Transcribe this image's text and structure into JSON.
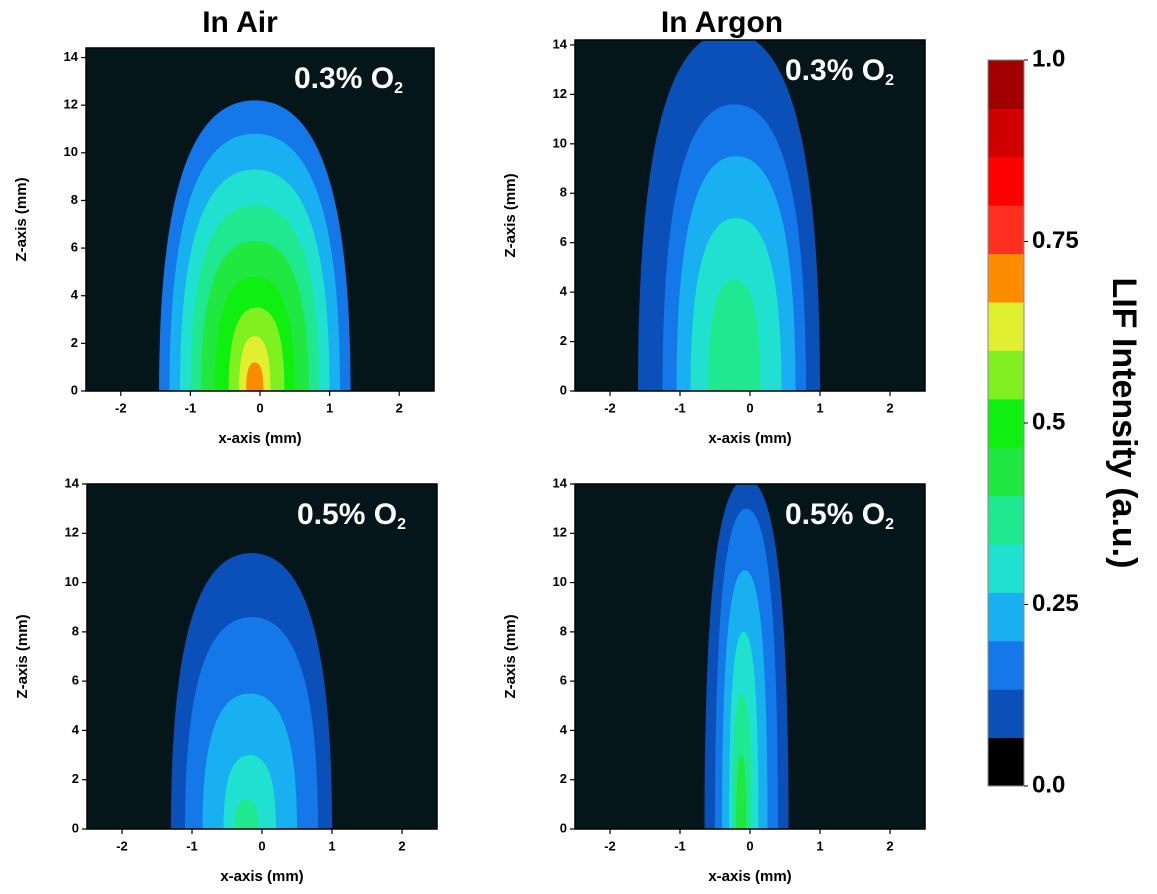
{
  "column_titles": [
    "In Air",
    "In Argon"
  ],
  "chart_data": [
    {
      "type": "contour",
      "annotation": {
        "text": "0.3% O",
        "subscript": "2"
      },
      "xlabel": "x-axis (mm)",
      "ylabel": "Z-axis (mm)",
      "xlim": [
        -2.5,
        2.5
      ],
      "xticks": [
        -2,
        -1,
        0,
        1,
        2
      ],
      "ylim": [
        0,
        14.4
      ],
      "yticks": [
        0,
        2,
        4,
        6,
        8,
        10,
        12,
        14
      ],
      "background": "#04161a",
      "levels": [
        0.14,
        0.2,
        0.27,
        0.34,
        0.4,
        0.47,
        0.54,
        0.6,
        0.67
      ],
      "left": [
        -1.45,
        -1.3,
        -1.15,
        -1.0,
        -0.85,
        -0.65,
        -0.45,
        -0.3,
        -0.2
      ],
      "right": [
        1.3,
        1.15,
        1.0,
        0.85,
        0.7,
        0.5,
        0.35,
        0.15,
        0.05
      ],
      "top": [
        12.2,
        10.8,
        9.3,
        7.8,
        6.3,
        4.8,
        3.5,
        2.3,
        1.2
      ]
    },
    {
      "type": "contour",
      "annotation": {
        "text": "0.3% O",
        "subscript": "2"
      },
      "xlabel": "x-axis (mm)",
      "ylabel": "Z-axis (mm)",
      "xlim": [
        -2.5,
        2.5
      ],
      "xticks": [
        -2,
        -1,
        0,
        1,
        2
      ],
      "ylim": [
        0,
        14.2
      ],
      "yticks": [
        0,
        2,
        4,
        6,
        8,
        10,
        12,
        14
      ],
      "background": "#04161a",
      "levels": [
        0.07,
        0.14,
        0.2,
        0.27,
        0.34
      ],
      "left": [
        -1.6,
        -1.25,
        -1.05,
        -0.85,
        -0.6
      ],
      "right": [
        1.0,
        0.8,
        0.65,
        0.45,
        0.15
      ],
      "top": [
        14.5,
        11.6,
        9.5,
        7,
        4.5
      ]
    },
    {
      "type": "contour",
      "annotation": {
        "text": "0.5% O",
        "subscript": "2"
      },
      "xlabel": "x-axis (mm)",
      "ylabel": "Z-axis (mm)",
      "xlim": [
        -2.5,
        2.5
      ],
      "xticks": [
        -2,
        -1,
        0,
        1,
        2
      ],
      "ylim": [
        0,
        14
      ],
      "yticks": [
        0,
        2,
        4,
        6,
        8,
        10,
        12,
        14
      ],
      "background": "#04161a",
      "levels": [
        0.07,
        0.14,
        0.2,
        0.27,
        0.34
      ],
      "left": [
        -1.3,
        -1.1,
        -0.85,
        -0.55,
        -0.4
      ],
      "right": [
        1.0,
        0.8,
        0.5,
        0.2,
        -0.05
      ],
      "top": [
        11.2,
        8.6,
        5.5,
        3,
        1.2
      ]
    },
    {
      "type": "contour",
      "annotation": {
        "text": "0.5% O",
        "subscript": "2"
      },
      "xlabel": "x-axis (mm)",
      "ylabel": "Z-axis (mm)",
      "xlim": [
        -2.5,
        2.5
      ],
      "xticks": [
        -2,
        -1,
        0,
        1,
        2
      ],
      "ylim": [
        0,
        14
      ],
      "yticks": [
        0,
        2,
        4,
        6,
        8,
        10,
        12,
        14
      ],
      "background": "#04161a",
      "levels": [
        0.07,
        0.14,
        0.2,
        0.27,
        0.34,
        0.4
      ],
      "left": [
        -0.65,
        -0.5,
        -0.4,
        -0.3,
        -0.25,
        -0.2
      ],
      "right": [
        0.55,
        0.4,
        0.25,
        0.12,
        0.02,
        -0.05
      ],
      "top": [
        14.2,
        13,
        10.5,
        8,
        5.5,
        3
      ]
    },
    {
      "type": "colorbar",
      "label": "LIF Intensity (a.u.)",
      "lim": [
        0,
        1
      ],
      "ticks": [
        {
          "value": 0,
          "label": "0.0"
        },
        0.25,
        0.5,
        0.75,
        {
          "value": 1,
          "label": "1.0"
        }
      ],
      "colors": [
        "#000000",
        "#0a50b8",
        "#1478e8",
        "#18b0f0",
        "#20e0d0",
        "#20e890",
        "#20e840",
        "#10f010",
        "#80f020",
        "#e0f030",
        "#ff8c00",
        "#ff3020",
        "#ff0000",
        "#d00000",
        "#a00000"
      ]
    }
  ]
}
